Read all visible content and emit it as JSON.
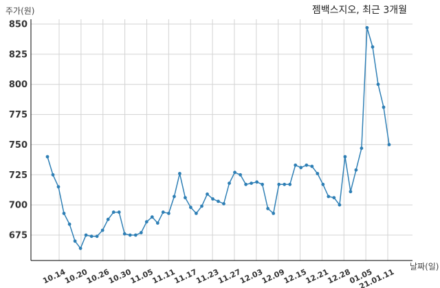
{
  "chart_data": {
    "type": "line",
    "title": "젬백스지오, 최근 3개월",
    "xlabel": "날짜(일)",
    "ylabel": "주가(원)",
    "ylim": [
      660,
      855
    ],
    "yticks": [
      675,
      700,
      725,
      750,
      775,
      800,
      825,
      850
    ],
    "grid": true,
    "line_color": "#2e7fb5",
    "xtick_labels": [
      "10.14",
      "10.20",
      "10.26",
      "10.30",
      "11.05",
      "11.11",
      "11.17",
      "11.23",
      "11.27",
      "12.03",
      "12.09",
      "12.15",
      "12.21",
      "12.28",
      "01.05",
      "21.01.11"
    ],
    "series": [
      {
        "values": [
          740,
          725,
          715,
          693,
          684,
          670,
          664,
          675,
          674,
          674,
          679,
          688,
          694,
          694,
          676,
          675,
          675,
          677,
          686,
          690,
          685,
          694,
          693,
          707,
          726,
          706,
          698,
          693,
          699,
          709,
          705,
          703,
          701,
          718,
          727,
          725,
          717,
          718,
          719,
          717,
          697,
          693,
          717,
          717,
          717,
          733,
          731,
          733,
          732,
          726,
          717,
          707,
          706,
          700,
          740,
          711,
          729,
          747,
          847,
          831,
          800,
          781,
          750
        ]
      }
    ]
  }
}
